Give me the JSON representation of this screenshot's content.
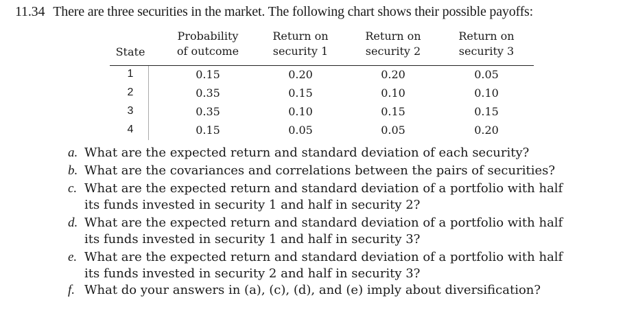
{
  "problem": {
    "number": "11.34",
    "text": "There are three securities in the market. The following chart shows their possible payoffs:"
  },
  "table": {
    "headers": {
      "state": [
        "State"
      ],
      "probability": [
        "Probability",
        "of outcome"
      ],
      "security1": [
        "Return on",
        "security 1"
      ],
      "security2": [
        "Return on",
        "security 2"
      ],
      "security3": [
        "Return on",
        "security 3"
      ]
    },
    "rows": [
      {
        "state": "1",
        "probability": "0.15",
        "r1": "0.20",
        "r2": "0.20",
        "r3": "0.05"
      },
      {
        "state": "2",
        "probability": "0.35",
        "r1": "0.15",
        "r2": "0.10",
        "r3": "0.10"
      },
      {
        "state": "3",
        "probability": "0.35",
        "r1": "0.10",
        "r2": "0.15",
        "r3": "0.15"
      },
      {
        "state": "4",
        "probability": "0.15",
        "r1": "0.05",
        "r2": "0.05",
        "r3": "0.20"
      }
    ]
  },
  "questions": [
    {
      "letter": "a.",
      "lines": [
        "What are the expected return and standard deviation of each security?"
      ]
    },
    {
      "letter": "b.",
      "lines": [
        "What are the covariances and correlations between the pairs of securities?"
      ]
    },
    {
      "letter": "c.",
      "lines": [
        "What are the expected return and standard deviation of a portfolio with half",
        "its funds invested in security 1 and half in security 2?"
      ]
    },
    {
      "letter": "d.",
      "lines": [
        "What are the expected return and standard deviation of a portfolio with half",
        "its funds invested in security 1 and half in security 3?"
      ]
    },
    {
      "letter": "e.",
      "lines": [
        "What are the expected return and standard deviation of a portfolio with half",
        "its funds invested in security 2 and half in security 3?"
      ]
    },
    {
      "letter": "f.",
      "lines": [
        "What do your answers in (a), (c), (d), and (e) imply about diversification?"
      ]
    }
  ]
}
